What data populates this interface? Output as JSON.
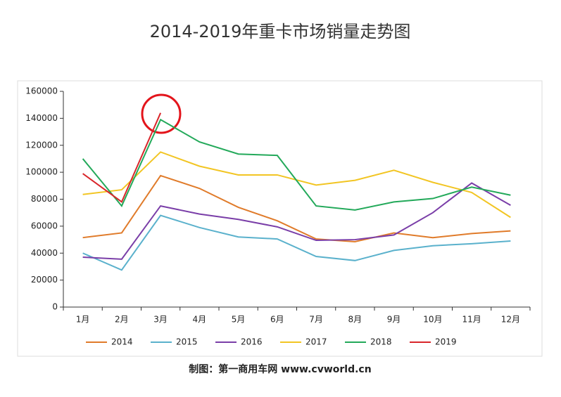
{
  "chart_data": {
    "type": "line",
    "title": "2014-2019年重卡市场销量走势图",
    "categories": [
      "1月",
      "2月",
      "3月",
      "4月",
      "5月",
      "6月",
      "7月",
      "8月",
      "9月",
      "10月",
      "11月",
      "12月"
    ],
    "series": [
      {
        "name": "2014",
        "color": "#e07b2a",
        "values": [
          51500,
          55000,
          97500,
          88000,
          74000,
          64000,
          50500,
          48500,
          55000,
          51500,
          54500,
          56500
        ]
      },
      {
        "name": "2015",
        "color": "#5ab1cc",
        "values": [
          40000,
          27500,
          68000,
          59000,
          52000,
          50500,
          37500,
          34500,
          42000,
          45500,
          47000,
          49000
        ]
      },
      {
        "name": "2016",
        "color": "#7a3ea8",
        "values": [
          37000,
          35500,
          75000,
          69000,
          65000,
          59500,
          49500,
          50000,
          53500,
          70000,
          92000,
          75500
        ]
      },
      {
        "name": "2017",
        "color": "#f2c523",
        "values": [
          83500,
          87000,
          115000,
          104500,
          98000,
          98000,
          90500,
          94000,
          101500,
          92500,
          85000,
          66500
        ]
      },
      {
        "name": "2018",
        "color": "#23a95a",
        "values": [
          110000,
          75000,
          139000,
          122500,
          113500,
          112500,
          75000,
          72000,
          78000,
          80500,
          89000,
          83000
        ]
      },
      {
        "name": "2019",
        "color": "#d9262b",
        "values": [
          99000,
          78000,
          144000,
          null,
          null,
          null,
          null,
          null,
          null,
          null,
          null,
          null
        ]
      }
    ],
    "ylim": [
      0,
      160000
    ],
    "yticks": [
      0,
      20000,
      40000,
      60000,
      80000,
      100000,
      120000,
      140000,
      160000
    ],
    "legend": "bottom",
    "footer": "制图：第一商用车网 www.cvworld.cn"
  }
}
